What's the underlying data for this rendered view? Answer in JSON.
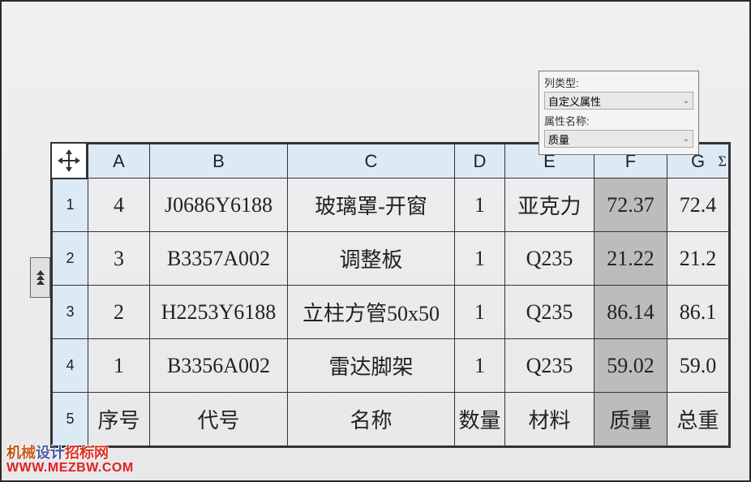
{
  "panel": {
    "label1": "列类型:",
    "dropdown1": "自定义属性",
    "label2": "属性名称:",
    "dropdown2": "质量"
  },
  "table": {
    "columns": [
      "A",
      "B",
      "C",
      "D",
      "E",
      "F",
      "G"
    ],
    "row_numbers": [
      "1",
      "2",
      "3",
      "4",
      "5"
    ],
    "highlighted_column_index": 5,
    "rows": [
      [
        "4",
        "J0686Y6188",
        "玻璃罩-开窗",
        "1",
        "亚克力",
        "72.37",
        "72.4"
      ],
      [
        "3",
        "B3357A002",
        "调整板",
        "1",
        "Q235",
        "21.22",
        "21.2"
      ],
      [
        "2",
        "H2253Y6188",
        "立柱方管50x50",
        "1",
        "Q235",
        "86.14",
        "86.1"
      ],
      [
        "1",
        "B3356A002",
        "雷达脚架",
        "1",
        "Q235",
        "59.02",
        "59.0"
      ],
      [
        "序号",
        "代号",
        "名称",
        "数量",
        "材料",
        "质量",
        "总重"
      ]
    ]
  },
  "sigma": "Σ",
  "watermark": {
    "line1": "机械设计招标网",
    "line2": "WWW.MEZBW.COM"
  },
  "colors": {
    "header_bg": "#dceaf5",
    "highlight_bg": "#bcbcbc",
    "border": "#333333",
    "panel_bg": "#f4f4f4"
  }
}
